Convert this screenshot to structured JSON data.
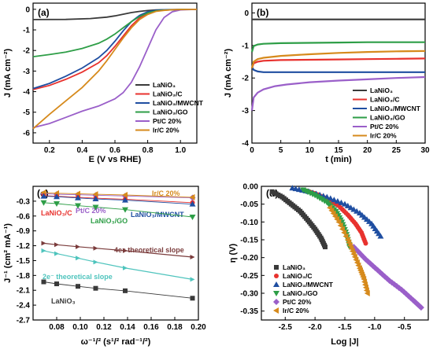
{
  "figure": {
    "width": 550,
    "height": 449
  },
  "chart_data": [
    {
      "panel_label": "(a)",
      "type": "line",
      "xlabel": "E (V vs RHE)",
      "ylabel": "J (mA cm⁻²)",
      "xlim": [
        0.1,
        1.1
      ],
      "ylim": [
        -6.5,
        0.3
      ],
      "xticks": [
        "0.2",
        "0.4",
        "0.6",
        "0.8",
        "1.0"
      ],
      "yticks": [
        "0",
        "-1",
        "-2",
        "-3",
        "-4",
        "-5",
        "-6"
      ],
      "legend_position": "bottom-right",
      "series": [
        {
          "name": "LaNiO₃",
          "color": "#3a3a3a",
          "x": [
            0.1,
            0.3,
            0.45,
            0.55,
            0.6,
            0.65,
            0.7,
            0.75,
            0.8,
            0.85,
            0.9,
            1.0,
            1.1
          ],
          "y": [
            -0.5,
            -0.49,
            -0.45,
            -0.38,
            -0.32,
            -0.24,
            -0.16,
            -0.1,
            -0.06,
            -0.03,
            -0.02,
            -0.01,
            0.0
          ]
        },
        {
          "name": "LaNiO₃/C",
          "color": "#e8322e",
          "x": [
            0.1,
            0.2,
            0.3,
            0.4,
            0.5,
            0.55,
            0.6,
            0.65,
            0.7,
            0.75,
            0.8,
            0.85,
            0.9,
            1.0,
            1.1
          ],
          "y": [
            -3.9,
            -3.7,
            -3.4,
            -3.05,
            -2.6,
            -2.25,
            -1.8,
            -1.3,
            -0.8,
            -0.42,
            -0.18,
            -0.08,
            -0.04,
            -0.01,
            0.0
          ]
        },
        {
          "name": "LaNiO₃/MWCNT",
          "color": "#1f4ea1",
          "x": [
            0.1,
            0.2,
            0.3,
            0.4,
            0.5,
            0.55,
            0.6,
            0.65,
            0.7,
            0.75,
            0.8,
            0.85,
            0.9,
            1.0,
            1.1
          ],
          "y": [
            -3.85,
            -3.6,
            -3.25,
            -2.85,
            -2.35,
            -2.0,
            -1.55,
            -1.05,
            -0.6,
            -0.3,
            -0.12,
            -0.05,
            -0.02,
            -0.01,
            0.0
          ]
        },
        {
          "name": "LaNiO₃/GO",
          "color": "#2e9e47",
          "x": [
            0.1,
            0.2,
            0.3,
            0.4,
            0.5,
            0.55,
            0.6,
            0.65,
            0.7,
            0.75,
            0.8,
            0.85,
            0.9,
            1.0,
            1.1
          ],
          "y": [
            -2.3,
            -2.2,
            -2.08,
            -1.9,
            -1.65,
            -1.45,
            -1.2,
            -0.9,
            -0.6,
            -0.35,
            -0.17,
            -0.08,
            -0.04,
            -0.01,
            0.0
          ]
        },
        {
          "name": "Pt/C 20%",
          "color": "#9a5fc9",
          "x": [
            0.1,
            0.2,
            0.3,
            0.4,
            0.5,
            0.6,
            0.65,
            0.7,
            0.75,
            0.8,
            0.85,
            0.9,
            0.95,
            1.0,
            1.1
          ],
          "y": [
            -5.75,
            -5.55,
            -5.25,
            -4.95,
            -4.7,
            -4.35,
            -4.05,
            -3.55,
            -2.8,
            -1.9,
            -1.0,
            -0.4,
            -0.12,
            -0.03,
            0.0
          ]
        },
        {
          "name": "Ir/C 20%",
          "color": "#d68a1c",
          "x": [
            0.1,
            0.2,
            0.3,
            0.4,
            0.5,
            0.55,
            0.6,
            0.65,
            0.7,
            0.75,
            0.8,
            0.85,
            0.9,
            0.95,
            1.0,
            1.1
          ],
          "y": [
            -5.8,
            -5.1,
            -4.45,
            -3.8,
            -3.0,
            -2.5,
            -1.95,
            -1.4,
            -0.9,
            -0.5,
            -0.25,
            -0.1,
            -0.05,
            -0.02,
            -0.01,
            0.0
          ]
        }
      ]
    },
    {
      "panel_label": "(b)",
      "type": "line",
      "xlabel": "t (min)",
      "ylabel": "J (mA cm⁻²)",
      "xlim": [
        0,
        30
      ],
      "ylim": [
        -4,
        0.3
      ],
      "xticks": [
        "0",
        "5",
        "10",
        "15",
        "20",
        "25",
        "30"
      ],
      "yticks": [
        "0",
        "-1",
        "-2",
        "-3",
        "-4"
      ],
      "legend_position": "bottom-right",
      "series": [
        {
          "name": "LaNiO₃",
          "color": "#3a3a3a",
          "x": [
            0,
            5,
            10,
            15,
            20,
            25,
            30
          ],
          "y": [
            -0.2,
            -0.2,
            -0.2,
            -0.2,
            -0.2,
            -0.2,
            -0.2
          ]
        },
        {
          "name": "LaNiO₃/C",
          "color": "#e8322e",
          "x": [
            0,
            0.3,
            1,
            2,
            5,
            10,
            15,
            20,
            25,
            30
          ],
          "y": [
            -1.7,
            -1.55,
            -1.5,
            -1.47,
            -1.45,
            -1.44,
            -1.43,
            -1.42,
            -1.41,
            -1.4
          ]
        },
        {
          "name": "LaNiO₃/MWCNT",
          "color": "#1f4ea1",
          "x": [
            0,
            0.3,
            1,
            2,
            5,
            10,
            15,
            20,
            25,
            30
          ],
          "y": [
            -1.65,
            -1.75,
            -1.8,
            -1.82,
            -1.82,
            -1.82,
            -1.82,
            -1.82,
            -1.82,
            -1.82
          ]
        },
        {
          "name": "LaNiO₃/GO",
          "color": "#2e9e47",
          "x": [
            0,
            0.3,
            1,
            2,
            5,
            10,
            15,
            20,
            25,
            30
          ],
          "y": [
            -1.2,
            -1.02,
            -0.97,
            -0.95,
            -0.93,
            -0.92,
            -0.91,
            -0.9,
            -0.9,
            -0.9
          ]
        },
        {
          "name": "Pt/C 20%",
          "color": "#9a5fc9",
          "x": [
            0,
            0.3,
            1,
            2,
            4,
            6,
            10,
            15,
            20,
            25,
            30
          ],
          "y": [
            -3.0,
            -2.6,
            -2.45,
            -2.35,
            -2.25,
            -2.2,
            -2.13,
            -2.08,
            -2.04,
            -2.0,
            -1.97
          ]
        },
        {
          "name": "Ir/C 20%",
          "color": "#d68a1c",
          "x": [
            0,
            0.3,
            1,
            2,
            5,
            10,
            15,
            20,
            25,
            30
          ],
          "y": [
            -1.7,
            -1.5,
            -1.42,
            -1.38,
            -1.32,
            -1.27,
            -1.23,
            -1.2,
            -1.18,
            -1.17
          ]
        }
      ]
    },
    {
      "panel_label": "(c)",
      "type": "scatter",
      "xlabel": "ω⁻¹/² (s¹/² rad⁻¹/²)",
      "ylabel": "J⁻¹ (cm² mA⁻¹)",
      "xlim": [
        0.06,
        0.2
      ],
      "ylim": [
        -2.7,
        0.0
      ],
      "xticks": [
        "0.08",
        "0.10",
        "0.12",
        "0.14",
        "0.16",
        "0.18",
        "0.20"
      ],
      "yticks": [
        "-0.3",
        "-0.6",
        "-0.9",
        "-1.2",
        "-1.5",
        "-1.8",
        "-2.1",
        "-2.4",
        "-2.7"
      ],
      "x": [
        0.069,
        0.08,
        0.098,
        0.113,
        0.138,
        0.195
      ],
      "series": [
        {
          "name": "Pt/C 20%",
          "color": "#9a5fc9",
          "marker": "diamond",
          "y": [
            -0.15,
            -0.16,
            -0.17,
            -0.18,
            -0.195,
            -0.23
          ]
        },
        {
          "name": "Ir/C 20%",
          "color": "#d68a1c",
          "marker": "triangle-left",
          "y": [
            -0.13,
            -0.14,
            -0.15,
            -0.16,
            -0.175,
            -0.22
          ]
        },
        {
          "name": "LaNiO₃/C",
          "color": "#e8322e",
          "marker": "circle",
          "y": [
            -0.19,
            -0.2,
            -0.22,
            -0.24,
            -0.26,
            -0.33
          ]
        },
        {
          "name": "LaNiO₃/MWCNT",
          "color": "#1f4ea1",
          "marker": "triangle-up",
          "y": [
            -0.2,
            -0.21,
            -0.235,
            -0.255,
            -0.28,
            -0.36
          ]
        },
        {
          "name": "LaNiO₃/GO",
          "color": "#2e9e47",
          "marker": "triangle-down",
          "y": [
            -0.33,
            -0.35,
            -0.39,
            -0.42,
            -0.47,
            -0.62
          ]
        },
        {
          "name": "LaNiO₃",
          "color": "#3a3a3a",
          "marker": "square",
          "y": [
            -1.93,
            -1.97,
            -2.02,
            -2.06,
            -2.11,
            -2.26
          ]
        }
      ],
      "reference_lines": [
        {
          "label": "4e⁻ theoretical slope",
          "color": "#7a3b3b",
          "y": [
            -1.15,
            -1.18,
            -1.22,
            -1.25,
            -1.3,
            -1.43
          ]
        },
        {
          "label": "2e⁻ theoretical slope",
          "color": "#4fc4bd",
          "y": [
            -1.3,
            -1.36,
            -1.45,
            -1.53,
            -1.65,
            -1.88
          ]
        }
      ]
    },
    {
      "panel_label": "(d)",
      "type": "scatter",
      "xlabel": "Log |J|",
      "ylabel": "η (V)",
      "xlim": [
        -2.9,
        -0.1
      ],
      "ylim": [
        -0.375,
        0.0
      ],
      "xticks": [
        "-2.5",
        "-2.0",
        "-1.5",
        "-1.0",
        "-0.5"
      ],
      "yticks": [
        "0.00",
        "-0.05",
        "-0.10",
        "-0.15",
        "-0.20",
        "-0.25",
        "-0.30",
        "-0.35"
      ],
      "legend_position": "bottom-left",
      "series": [
        {
          "name": "LaNiO₃",
          "color": "#3a3a3a",
          "marker": "square",
          "x": [
            -2.72,
            -2.55,
            -2.4,
            -2.25,
            -2.12,
            -2.0,
            -1.9,
            -1.83
          ],
          "y": [
            -0.015,
            -0.03,
            -0.05,
            -0.07,
            -0.095,
            -0.12,
            -0.145,
            -0.17
          ]
        },
        {
          "name": "LaNiO₃/C",
          "color": "#e8322e",
          "marker": "circle",
          "x": [
            -2.2,
            -2.0,
            -1.8,
            -1.6,
            -1.45,
            -1.32,
            -1.22,
            -1.15
          ],
          "y": [
            -0.01,
            -0.02,
            -0.035,
            -0.055,
            -0.08,
            -0.105,
            -0.13,
            -0.16
          ]
        },
        {
          "name": "LaNiO₃/MWCNT",
          "color": "#1f4ea1",
          "marker": "triangle-up",
          "x": [
            -2.38,
            -2.1,
            -1.8,
            -1.5,
            -1.25,
            -1.05,
            -0.9
          ],
          "y": [
            -0.005,
            -0.015,
            -0.03,
            -0.05,
            -0.075,
            -0.105,
            -0.14
          ]
        },
        {
          "name": "LaNiO₃/GO",
          "color": "#2e9e47",
          "marker": "triangle-down",
          "x": [
            -2.2,
            -2.0,
            -1.8,
            -1.65,
            -1.55,
            -1.47,
            -1.42
          ],
          "y": [
            -0.01,
            -0.025,
            -0.045,
            -0.07,
            -0.1,
            -0.135,
            -0.17
          ]
        },
        {
          "name": "Pt/C 20%",
          "color": "#9a5fc9",
          "marker": "diamond",
          "x": [
            -1.35,
            -1.15,
            -0.95,
            -0.75,
            -0.55,
            -0.35,
            -0.22
          ],
          "y": [
            -0.17,
            -0.205,
            -0.235,
            -0.265,
            -0.29,
            -0.32,
            -0.34
          ]
        },
        {
          "name": "Ir/C 20%",
          "color": "#d68a1c",
          "marker": "triangle-left",
          "x": [
            -1.75,
            -1.6,
            -1.45,
            -1.35,
            -1.25,
            -1.18,
            -1.12
          ],
          "y": [
            -0.06,
            -0.1,
            -0.15,
            -0.19,
            -0.23,
            -0.26,
            -0.3
          ]
        }
      ]
    }
  ]
}
